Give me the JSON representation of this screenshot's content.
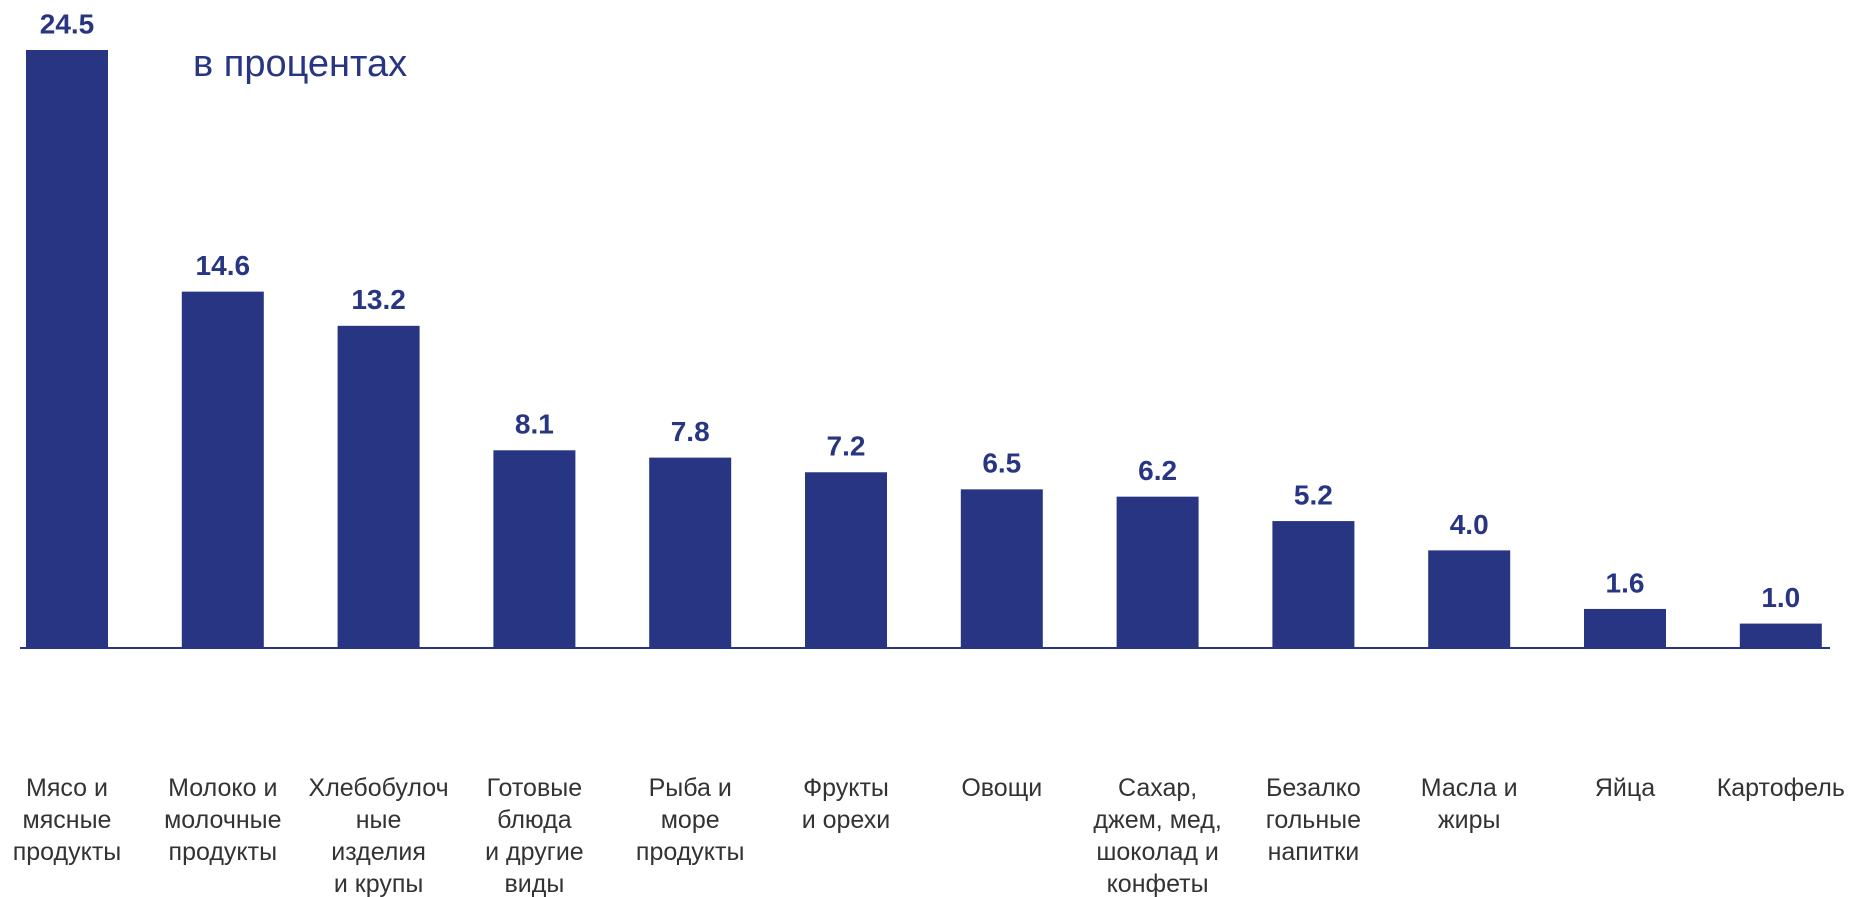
{
  "chart_data": {
    "type": "bar",
    "title": "в  процентах",
    "categories": [
      "Мясо и\nмясные\nпродукты",
      "Молоко и\nмолочные\nпродукты",
      "Хлебобулоч\nные\nизделия\nи крупы",
      "Готовые\nблюда\nи другие виды\nпродуктов",
      "Рыба и\nморе\nпродукты",
      "Фрукты\nи орехи",
      "Овощи",
      "Сахар,\nджем,  мед,\nшоколад и\nконфеты",
      "Безалко\nгольные\nнапитки",
      "Масла и\nжиры",
      "Яйца",
      "Картофель"
    ],
    "values": [
      24.5,
      14.6,
      13.2,
      8.1,
      7.8,
      7.2,
      6.5,
      6.2,
      5.2,
      4,
      1.6,
      1
    ],
    "value_labels": [
      "24.5",
      "14.6",
      "13.2",
      "8.1",
      "7.8",
      "7.2",
      "6.5",
      "6.2",
      "5.2",
      "4.0",
      "1.6",
      "1.0"
    ],
    "color": "#283583"
  }
}
